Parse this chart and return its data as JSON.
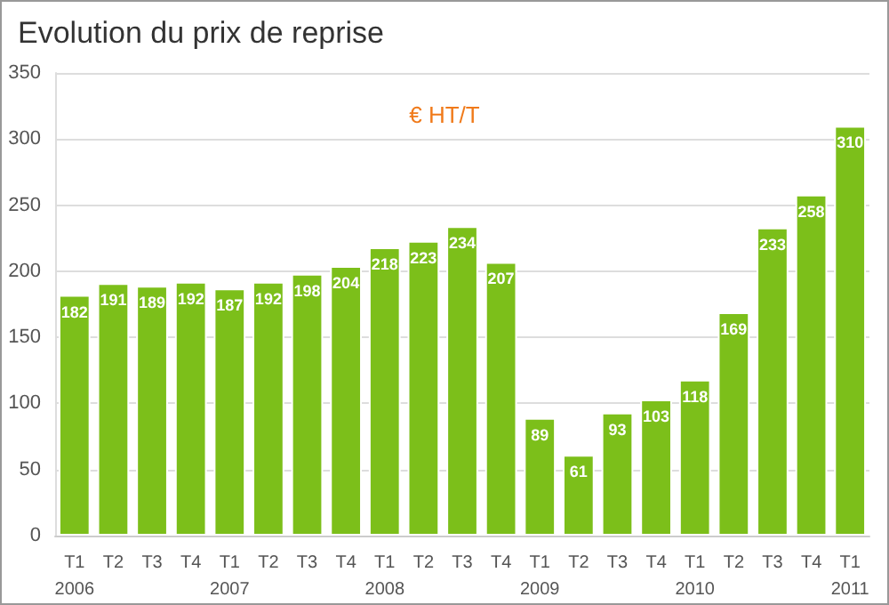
{
  "chart_data": {
    "type": "bar",
    "title": "Evolution du prix de reprise",
    "annotations": [
      "€ HT/T"
    ],
    "categories": [
      "T1\n2006",
      "T2",
      "T3",
      "T4",
      "T1\n2007",
      "T2",
      "T3",
      "T4",
      "T1\n2008",
      "T2",
      "T3",
      "T4",
      "T1\n2009",
      "T2",
      "T3",
      "T4",
      "T1\n2010",
      "T2",
      "T3",
      "T4",
      "T1\n2011"
    ],
    "values": [
      182,
      191,
      189,
      192,
      187,
      192,
      198,
      204,
      218,
      223,
      234,
      207,
      89,
      61,
      93,
      103,
      118,
      169,
      233,
      258,
      310
    ],
    "color": "#7cbf1a",
    "ylim": [
      0,
      350
    ],
    "yticks": [
      0,
      50,
      100,
      150,
      200,
      250,
      300,
      350
    ],
    "grid": "y",
    "data_labels": true
  }
}
